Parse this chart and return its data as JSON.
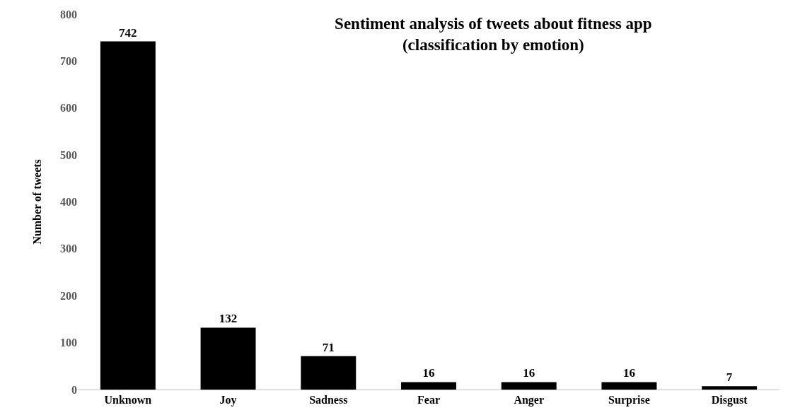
{
  "chart_data": {
    "type": "bar",
    "title": "Sentiment analysis of tweets about fitness app\n(classification by emotion)",
    "ylabel": "Number of tweets",
    "categories": [
      "Unknown",
      "Joy",
      "Sadness",
      "Fear",
      "Anger",
      "Surprise",
      "Disgust"
    ],
    "values": [
      742,
      132,
      71,
      16,
      16,
      16,
      7
    ],
    "color": "#000000",
    "ylim": [
      0,
      800
    ],
    "yticks": [
      0,
      100,
      200,
      300,
      400,
      500,
      600,
      700,
      800
    ],
    "data_labels": true,
    "legend": false
  }
}
